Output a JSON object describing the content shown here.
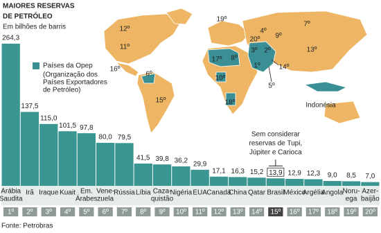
{
  "chart_data": {
    "type": "bar",
    "title": [
      "MAIORES RESERVAS",
      "DE PETRÓLEO"
    ],
    "subtitle": "Em bilhões de barris",
    "color": "#3a9690",
    "opep_color": "#3a8f94",
    "other_color": "#eeb664",
    "legend": {
      "label": "Países da Opep",
      "note": [
        "(Organização dos",
        "Países Exportadores",
        "de Petróleo)"
      ]
    },
    "categories": [
      [
        "Arábia",
        "Saudita"
      ],
      [
        "Irã"
      ],
      [
        "Iraque"
      ],
      [
        "Kuait"
      ],
      [
        "Em.",
        "Árabes"
      ],
      [
        "Vene-",
        "zuela"
      ],
      [
        "Rússia"
      ],
      [
        "Líbia"
      ],
      [
        "Caza-",
        "quistão"
      ],
      [
        "Nigéria"
      ],
      [
        "EUA"
      ],
      [
        "Canadá"
      ],
      [
        "China"
      ],
      [
        "Qatar"
      ],
      [
        "Brasil"
      ],
      [
        "México"
      ],
      [
        "Argélia"
      ],
      [
        "Angola"
      ],
      [
        "Noru-",
        "ega"
      ],
      [
        "Azer-",
        "baijão"
      ]
    ],
    "ranks": [
      "1º",
      "2º",
      "3º",
      "4º",
      "5º",
      "6º",
      "7º",
      "8º",
      "9º",
      "10º",
      "11º",
      "12º",
      "13º",
      "14º",
      "15º",
      "16º",
      "17º",
      "18º",
      "19º",
      "20º"
    ],
    "values": [
      264.3,
      137.5,
      115.0,
      101.5,
      97.8,
      80.0,
      79.5,
      41.5,
      39.8,
      36.2,
      29.9,
      17.1,
      16.3,
      15.2,
      13.9,
      12.9,
      12.3,
      9.0,
      8.5,
      7.0
    ],
    "value_labels": [
      "264,3",
      "137,5",
      "115,0",
      "101,5",
      "97,8",
      "80,0",
      "79,5",
      "41,5",
      "39,8",
      "36,2",
      "29,9",
      "17,1",
      "16,3",
      "15,2",
      "13,9",
      "12,9",
      "12,3",
      "9,0",
      "8,5",
      "7,0"
    ],
    "annotation": [
      "Sem considerar",
      "reservas de Tupi,",
      "Júpiter e Carioca"
    ],
    "map_labels": [
      "12º",
      "11º",
      "16º",
      "6º",
      "15º",
      "19º",
      "17º",
      "8º",
      "10º",
      "18º",
      "20º",
      "4º",
      "9º",
      "3º",
      "2º",
      "1º",
      "14º",
      "5º",
      "7º",
      "13º",
      "Indonésia"
    ],
    "source": "Fonte: Petrobras"
  }
}
